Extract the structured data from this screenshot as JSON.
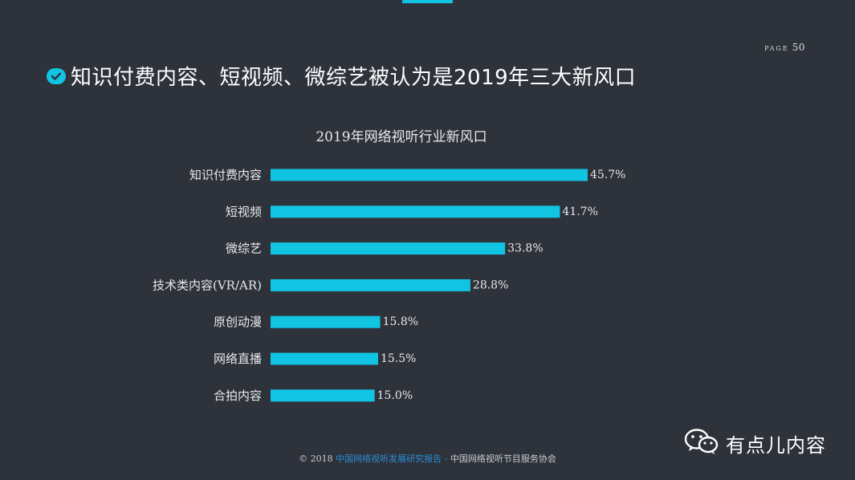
{
  "page": {
    "label": "PAGE",
    "number": "50"
  },
  "title": "知识付费内容、短视频、微综艺被认为是2019年三大新风口",
  "chart_data": {
    "type": "bar",
    "orientation": "horizontal",
    "title": "2019年网络视听行业新风口",
    "categories": [
      "知识付费内容",
      "短视频",
      "微综艺",
      "技术类内容(VR/AR)",
      "原创动漫",
      "网络直播",
      "合拍内容"
    ],
    "values": [
      45.7,
      41.7,
      33.8,
      28.8,
      15.8,
      15.5,
      15.0
    ],
    "value_labels": [
      "45.7%",
      "41.7%",
      "33.8%",
      "28.8%",
      "15.8%",
      "15.5%",
      "15.0%"
    ],
    "unit": "%",
    "xlim": [
      0,
      48
    ],
    "bar_color": "#11c4e2",
    "grid": false,
    "legend": "none"
  },
  "footer": {
    "prefix": "© 2018 ",
    "report": "中国网络视听发展研究报告",
    "separator": " - ",
    "org": "中国网络视听节目服务协会"
  },
  "watermark": {
    "icon": "wechat-icon",
    "text": "有点儿内容"
  },
  "colors": {
    "background": "#2e323b",
    "accent": "#11c4e2"
  }
}
